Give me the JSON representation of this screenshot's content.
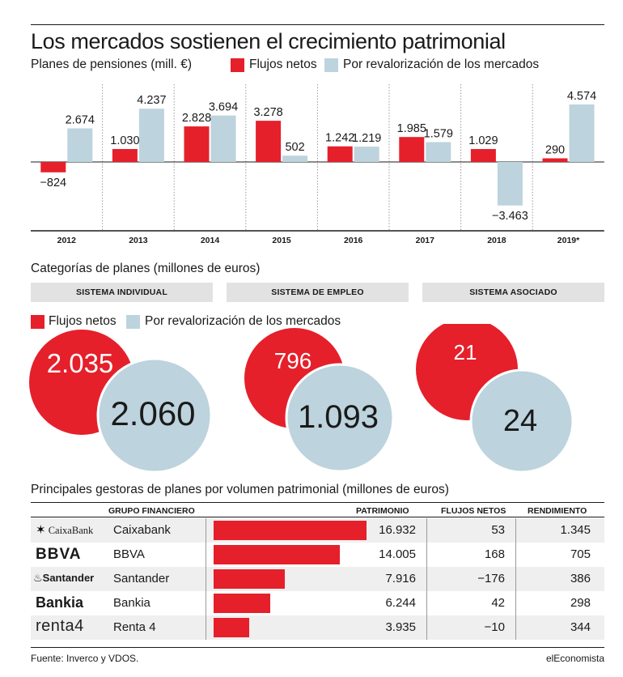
{
  "title": "Los mercados sostienen el crecimiento patrimonial",
  "colors": {
    "red": "#e5202b",
    "blue": "#bdd3dd",
    "grey": "#e2e2e2"
  },
  "chart_data": [
    {
      "type": "bar",
      "title": "Planes de pensiones (mill. €)",
      "categories": [
        "2012",
        "2013",
        "2014",
        "2015",
        "2016",
        "2017",
        "2018",
        "2019*"
      ],
      "series": [
        {
          "name": "Flujos netos",
          "values": [
            -824,
            1030,
            2828,
            3278,
            1242,
            1985,
            1029,
            290
          ],
          "labels": [
            "−824",
            "1.030",
            "2.828",
            "3.278",
            "1.242",
            "1.985",
            "1.029",
            "290"
          ]
        },
        {
          "name": "Por revalorización de los mercados",
          "values": [
            2674,
            4237,
            3694,
            502,
            1219,
            1579,
            -3463,
            4574
          ],
          "labels": [
            "2.674",
            "4.237",
            "3.694",
            "502",
            "1.219",
            "1.579",
            "−3.463",
            "4.574"
          ]
        }
      ]
    },
    {
      "type": "bubble",
      "title": "Categorías de planes (millones de euros)",
      "groups": [
        {
          "name": "SISTEMA INDIVIDUAL",
          "flujos": 2035,
          "flujos_label": "2.035",
          "revalorizacion": 2060,
          "revalorizacion_label": "2.060"
        },
        {
          "name": "SISTEMA DE EMPLEO",
          "flujos": 796,
          "flujos_label": "796",
          "revalorizacion": 1093,
          "revalorizacion_label": "1.093"
        },
        {
          "name": "SISTEMA ASOCIADO",
          "flujos": 21,
          "flujos_label": "21",
          "revalorizacion": 24,
          "revalorizacion_label": "24"
        }
      ],
      "legend": [
        "Flujos netos",
        "Por revalorización de los mercados"
      ]
    },
    {
      "type": "table",
      "title": "Principales gestoras de planes por volumen patrimonial (millones de euros)",
      "columns": [
        "GRUPO FINANCIERO",
        "PATRIMONIO",
        "FLUJOS NETOS",
        "RENDIMIENTO"
      ],
      "rows": [
        {
          "logo": "CaixaBank",
          "name": "Caixabank",
          "patrimonio": 16932,
          "patrimonio_label": "16.932",
          "flujos": "53",
          "rendimiento": "1.345"
        },
        {
          "logo": "BBVA",
          "name": "BBVA",
          "patrimonio": 14005,
          "patrimonio_label": "14.005",
          "flujos": "168",
          "rendimiento": "705"
        },
        {
          "logo": "Santander",
          "name": "Santander",
          "patrimonio": 7916,
          "patrimonio_label": "7.916",
          "flujos": "−176",
          "rendimiento": "386"
        },
        {
          "logo": "Bankia",
          "name": "Bankia",
          "patrimonio": 6244,
          "patrimonio_label": "6.244",
          "flujos": "42",
          "rendimiento": "298"
        },
        {
          "logo": "renta4",
          "name": "Renta 4",
          "patrimonio": 3935,
          "patrimonio_label": "3.935",
          "flujos": "−10",
          "rendimiento": "344"
        }
      ]
    }
  ],
  "legend": {
    "flujos": "Flujos netos",
    "revalorizacion": "Por revalorización de los mercados"
  },
  "footer": {
    "source": "Fuente: Inverco y VDOS.",
    "brand": "elEconomista"
  }
}
